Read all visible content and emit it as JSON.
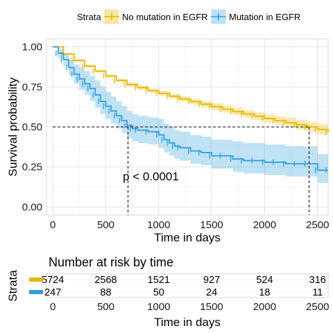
{
  "chart_data": [
    {
      "type": "line",
      "subtype": "kaplan-meier survival curve",
      "title": "",
      "xlabel": "Time in days",
      "ylabel": "Survival probability",
      "xlim": [
        -60,
        2600
      ],
      "ylim": [
        -0.05,
        1.05
      ],
      "x_ticks": [
        0,
        500,
        1000,
        1500,
        2000,
        2500
      ],
      "y_ticks": [
        0.0,
        0.25,
        0.5,
        0.75,
        1.0
      ],
      "y_tick_labels": [
        "0.00",
        "0.25",
        "0.50",
        "0.75",
        "1.00"
      ],
      "x_tick_labels": [
        "0",
        "500",
        "1000",
        "1500",
        "2000",
        "2500"
      ],
      "grid": true,
      "legend": {
        "position": "top",
        "title": "Strata",
        "entries": [
          "No mutation in EGFR",
          "Mutation in EGFR"
        ]
      },
      "annotation": "p < 0.0001",
      "median_line_y": 0.5,
      "medians": [
        2420,
        710
      ],
      "series": [
        {
          "name": "No mutation in EGFR",
          "color": "#E7B800",
          "x": [
            0,
            100,
            200,
            300,
            400,
            500,
            600,
            700,
            800,
            900,
            1000,
            1100,
            1200,
            1300,
            1400,
            1500,
            1600,
            1700,
            1800,
            1900,
            2000,
            2100,
            2200,
            2300,
            2400,
            2500,
            2600
          ],
          "y": [
            1.0,
            0.955,
            0.915,
            0.88,
            0.848,
            0.818,
            0.79,
            0.765,
            0.745,
            0.727,
            0.71,
            0.692,
            0.675,
            0.658,
            0.642,
            0.627,
            0.611,
            0.596,
            0.581,
            0.567,
            0.553,
            0.54,
            0.527,
            0.514,
            0.5,
            0.485,
            0.468
          ],
          "ci_lower": [
            1.0,
            0.949,
            0.908,
            0.872,
            0.839,
            0.808,
            0.779,
            0.753,
            0.732,
            0.713,
            0.695,
            0.676,
            0.658,
            0.64,
            0.623,
            0.606,
            0.589,
            0.573,
            0.557,
            0.542,
            0.526,
            0.512,
            0.497,
            0.483,
            0.468,
            0.451,
            0.432
          ],
          "ci_upper": [
            1.0,
            0.961,
            0.922,
            0.888,
            0.857,
            0.828,
            0.801,
            0.777,
            0.758,
            0.741,
            0.725,
            0.708,
            0.692,
            0.676,
            0.661,
            0.648,
            0.633,
            0.619,
            0.605,
            0.592,
            0.58,
            0.568,
            0.557,
            0.545,
            0.532,
            0.519,
            0.504
          ]
        },
        {
          "name": "Mutation in EGFR",
          "color": "#2E9FDF",
          "x": [
            0,
            50,
            100,
            150,
            200,
            250,
            300,
            350,
            400,
            450,
            500,
            550,
            600,
            650,
            700,
            750,
            800,
            900,
            1000,
            1050,
            1100,
            1150,
            1200,
            1300,
            1400,
            1500,
            1600,
            1700,
            1800,
            1900,
            2000,
            2100,
            2200,
            2300,
            2400,
            2500,
            2600
          ],
          "y": [
            1.0,
            0.96,
            0.92,
            0.87,
            0.83,
            0.8,
            0.77,
            0.74,
            0.7,
            0.66,
            0.63,
            0.6,
            0.57,
            0.54,
            0.51,
            0.49,
            0.48,
            0.47,
            0.45,
            0.42,
            0.4,
            0.38,
            0.37,
            0.35,
            0.34,
            0.32,
            0.32,
            0.3,
            0.29,
            0.29,
            0.28,
            0.28,
            0.27,
            0.27,
            0.27,
            0.23,
            0.23
          ],
          "ci_lower": [
            1.0,
            0.93,
            0.88,
            0.82,
            0.77,
            0.73,
            0.7,
            0.66,
            0.62,
            0.58,
            0.55,
            0.52,
            0.49,
            0.46,
            0.43,
            0.41,
            0.4,
            0.39,
            0.37,
            0.34,
            0.32,
            0.3,
            0.29,
            0.27,
            0.26,
            0.24,
            0.24,
            0.22,
            0.21,
            0.21,
            0.2,
            0.2,
            0.19,
            0.19,
            0.19,
            0.15,
            0.15
          ],
          "ci_upper": [
            1.0,
            0.99,
            0.96,
            0.92,
            0.89,
            0.87,
            0.85,
            0.82,
            0.79,
            0.75,
            0.72,
            0.69,
            0.66,
            0.63,
            0.6,
            0.58,
            0.57,
            0.56,
            0.55,
            0.52,
            0.5,
            0.48,
            0.47,
            0.45,
            0.44,
            0.42,
            0.42,
            0.41,
            0.4,
            0.4,
            0.39,
            0.39,
            0.38,
            0.38,
            0.38,
            0.33,
            0.33
          ]
        }
      ]
    },
    {
      "type": "table",
      "title": "Number at risk by time",
      "ylabel": "Strata",
      "xlabel": "Time in days",
      "times": [
        0,
        500,
        1000,
        1500,
        2000,
        2500
      ],
      "time_labels": [
        "0",
        "500",
        "1000",
        "1500",
        "2000",
        "2500"
      ],
      "rows": [
        {
          "name": "No mutation in EGFR",
          "color": "#E7B800",
          "values": [
            "5724",
            "2568",
            "1521",
            "927",
            "524",
            "316"
          ]
        },
        {
          "name": "Mutation in EGFR",
          "color": "#2E9FDF",
          "values": [
            "247",
            "88",
            "50",
            "24",
            "18",
            "11"
          ]
        }
      ]
    }
  ]
}
